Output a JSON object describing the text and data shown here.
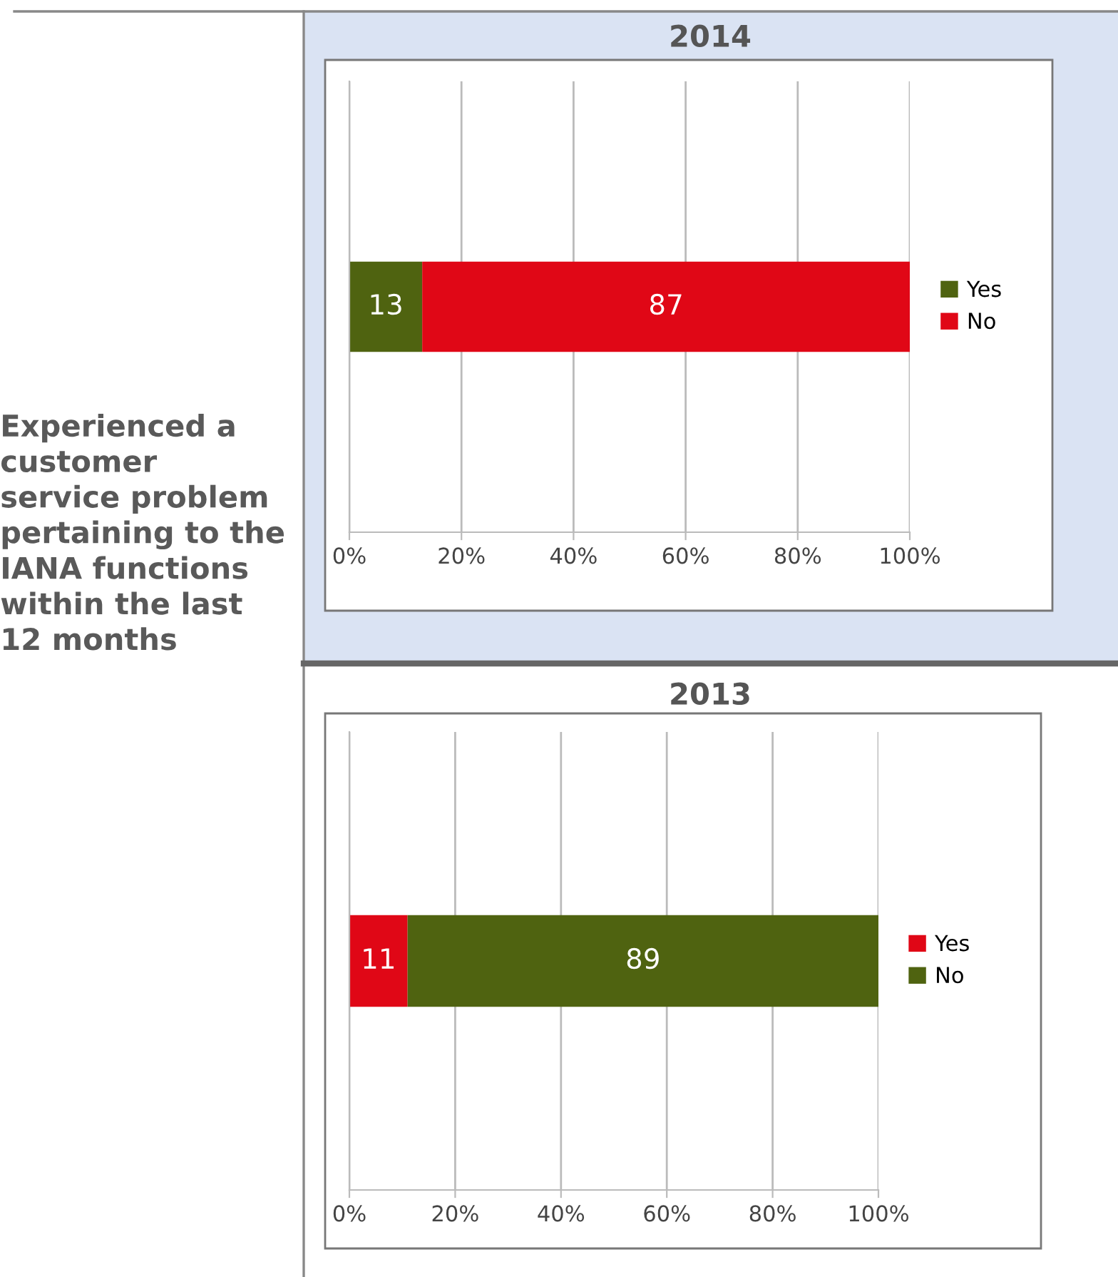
{
  "chart_data": [
    {
      "type": "bar",
      "title": "2014",
      "orientation": "horizontal",
      "stacked": true,
      "categories": [
        null
      ],
      "series": [
        {
          "name": "Yes",
          "color": "#4f6310",
          "values": [
            13
          ]
        },
        {
          "name": "No",
          "color": "#e00716",
          "values": [
            87
          ]
        }
      ],
      "xlim": [
        0,
        100
      ],
      "xticks": [
        {
          "value": 0,
          "label": "0%"
        },
        {
          "value": 20,
          "label": "20%"
        },
        {
          "value": 40,
          "label": "40%"
        },
        {
          "value": 60,
          "label": "60%"
        },
        {
          "value": 80,
          "label": "80%"
        },
        {
          "value": 100,
          "label": "100%"
        }
      ],
      "grid": "x",
      "legend": "right",
      "data_labels": true,
      "annotations": [
        "Experienced a customer service problem pertaining to the IANA functions within the last 12 months"
      ]
    },
    {
      "type": "bar",
      "title": "2013",
      "orientation": "horizontal",
      "stacked": true,
      "categories": [
        null
      ],
      "series": [
        {
          "name": "Yes",
          "color": "#e00716",
          "values": [
            11
          ]
        },
        {
          "name": "No",
          "color": "#4f6310",
          "values": [
            89
          ]
        }
      ],
      "xlim": [
        0,
        100
      ],
      "xticks": [
        {
          "value": 0,
          "label": "0%"
        },
        {
          "value": 20,
          "label": "20%"
        },
        {
          "value": 40,
          "label": "40%"
        },
        {
          "value": 60,
          "label": "60%"
        },
        {
          "value": 80,
          "label": "80%"
        },
        {
          "value": 100,
          "label": "100%"
        }
      ],
      "grid": "x",
      "legend": "right",
      "data_labels": true
    }
  ]
}
